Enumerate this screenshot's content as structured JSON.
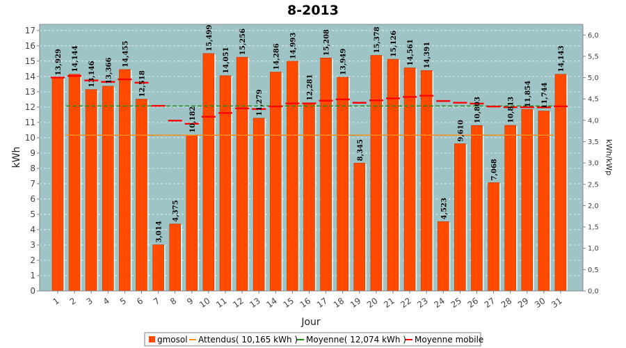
{
  "chart_data": {
    "type": "bar",
    "title": "8-2013",
    "xlabel": "Jour",
    "ylabel": "kWh",
    "y2label": "kWh/kWp",
    "ylim": [
      0,
      17.4
    ],
    "y2lim": [
      0,
      6.25
    ],
    "yticks": [
      0,
      1,
      2,
      3,
      4,
      5,
      6,
      7,
      8,
      9,
      10,
      11,
      12,
      13,
      14,
      15,
      16,
      17
    ],
    "y2ticks": [
      "0,0",
      "0,5",
      "1,0",
      "1,5",
      "2,0",
      "2,5",
      "3,0",
      "3,5",
      "4,0",
      "4,5",
      "5,0",
      "5,5",
      "6,0"
    ],
    "categories": [
      "1",
      "2",
      "3",
      "4",
      "5",
      "6",
      "7",
      "8",
      "9",
      "10",
      "11",
      "12",
      "13",
      "14",
      "15",
      "16",
      "17",
      "18",
      "19",
      "20",
      "21",
      "22",
      "23",
      "24",
      "25",
      "26",
      "27",
      "28",
      "29",
      "30",
      "31"
    ],
    "series": [
      {
        "name": "gmosol",
        "values": [
          13.929,
          14.144,
          13.146,
          13.366,
          14.455,
          12.518,
          3.014,
          4.375,
          10.182,
          15.499,
          14.051,
          15.256,
          11.279,
          14.286,
          14.993,
          12.281,
          15.208,
          13.949,
          8.345,
          15.378,
          15.126,
          14.561,
          14.391,
          4.523,
          9.61,
          10.803,
          7.068,
          10.813,
          11.854,
          11.744,
          14.143
        ],
        "labels": [
          "13,929",
          "14,144",
          "13,146",
          "13,366",
          "14,455",
          "12,518",
          "3,014",
          "4,375",
          "10,182",
          "15,499",
          "14,051",
          "15,256",
          "11,279",
          "14,286",
          "14,993",
          "12,281",
          "15,208",
          "13,949",
          "8,345",
          "15,378",
          "15,126",
          "14,561",
          "14,391",
          "4,523",
          "9,610",
          "10,803",
          "7,068",
          "10,813",
          "11,854",
          "11,744",
          "14,143"
        ],
        "color": "#ff4a00"
      },
      {
        "name": "Attendus( 10,165 kWh )",
        "value": 10.165,
        "color": "#ff8c1a"
      },
      {
        "name": "Moyenne( 12,074 kWh )",
        "value": 12.074,
        "color": "#1a8c1a"
      },
      {
        "name": "Moyenne mobile",
        "values": [
          13.929,
          14.036,
          13.74,
          13.646,
          13.808,
          13.593,
          12.082,
          11.118,
          10.914,
          11.372,
          11.616,
          11.919,
          11.87,
          12.043,
          12.24,
          12.243,
          12.417,
          12.502,
          12.283,
          12.438,
          12.568,
          12.664,
          12.739,
          12.397,
          12.285,
          12.228,
          12.037,
          11.993,
          11.99,
          11.982,
          12.049
        ],
        "color": "#ff0000"
      }
    ],
    "legend_position": "bottom",
    "grid": true
  }
}
